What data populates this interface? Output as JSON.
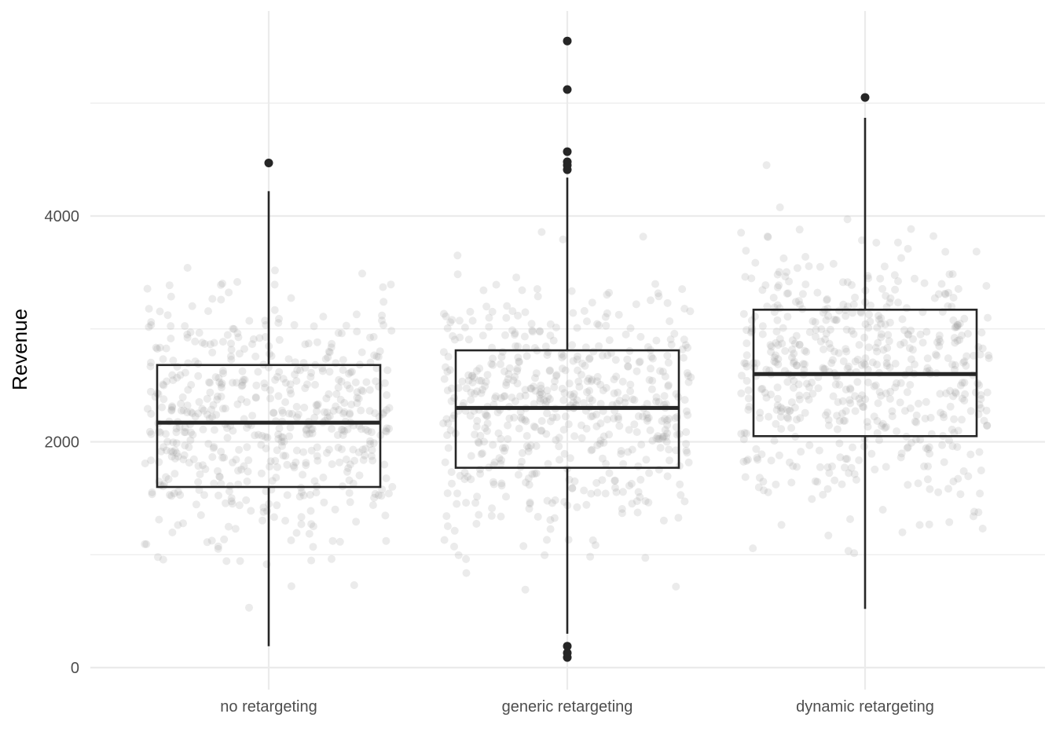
{
  "chart_data": {
    "type": "boxplot",
    "xlabel": "",
    "ylabel": "Revenue",
    "ylim": [
      -200,
      5830
    ],
    "y_major_ticks": [
      0,
      2000,
      4000
    ],
    "y_minor_ticks": [
      1000,
      3000,
      5000
    ],
    "categories": [
      "no retargeting",
      "generic retargeting",
      "dynamic retargeting"
    ],
    "boxes": [
      {
        "category": "no retargeting",
        "whisker_low": 190,
        "q1": 1600,
        "median": 2170,
        "q3": 2680,
        "whisker_high": 4220,
        "outliers": [
          4470
        ]
      },
      {
        "category": "generic retargeting",
        "whisker_low": 300,
        "q1": 1770,
        "median": 2300,
        "q3": 2810,
        "whisker_high": 4340,
        "outliers": [
          90,
          130,
          190,
          4410,
          4450,
          4480,
          4570,
          5120,
          5550
        ]
      },
      {
        "category": "dynamic retargeting",
        "whisker_low": 520,
        "q1": 2050,
        "median": 2600,
        "q3": 3170,
        "whisker_high": 4870,
        "outliers": [
          5050
        ]
      }
    ],
    "jitter_points": {
      "per_group": 560,
      "color": "#999999",
      "opacity": 0.2
    },
    "grid": true,
    "legend": "none"
  },
  "colors": {
    "background": "#ffffff",
    "grid": "#ebebeb",
    "box_line": "#262626",
    "jitter": "#999999",
    "tick_text": "#4d4d4d"
  }
}
